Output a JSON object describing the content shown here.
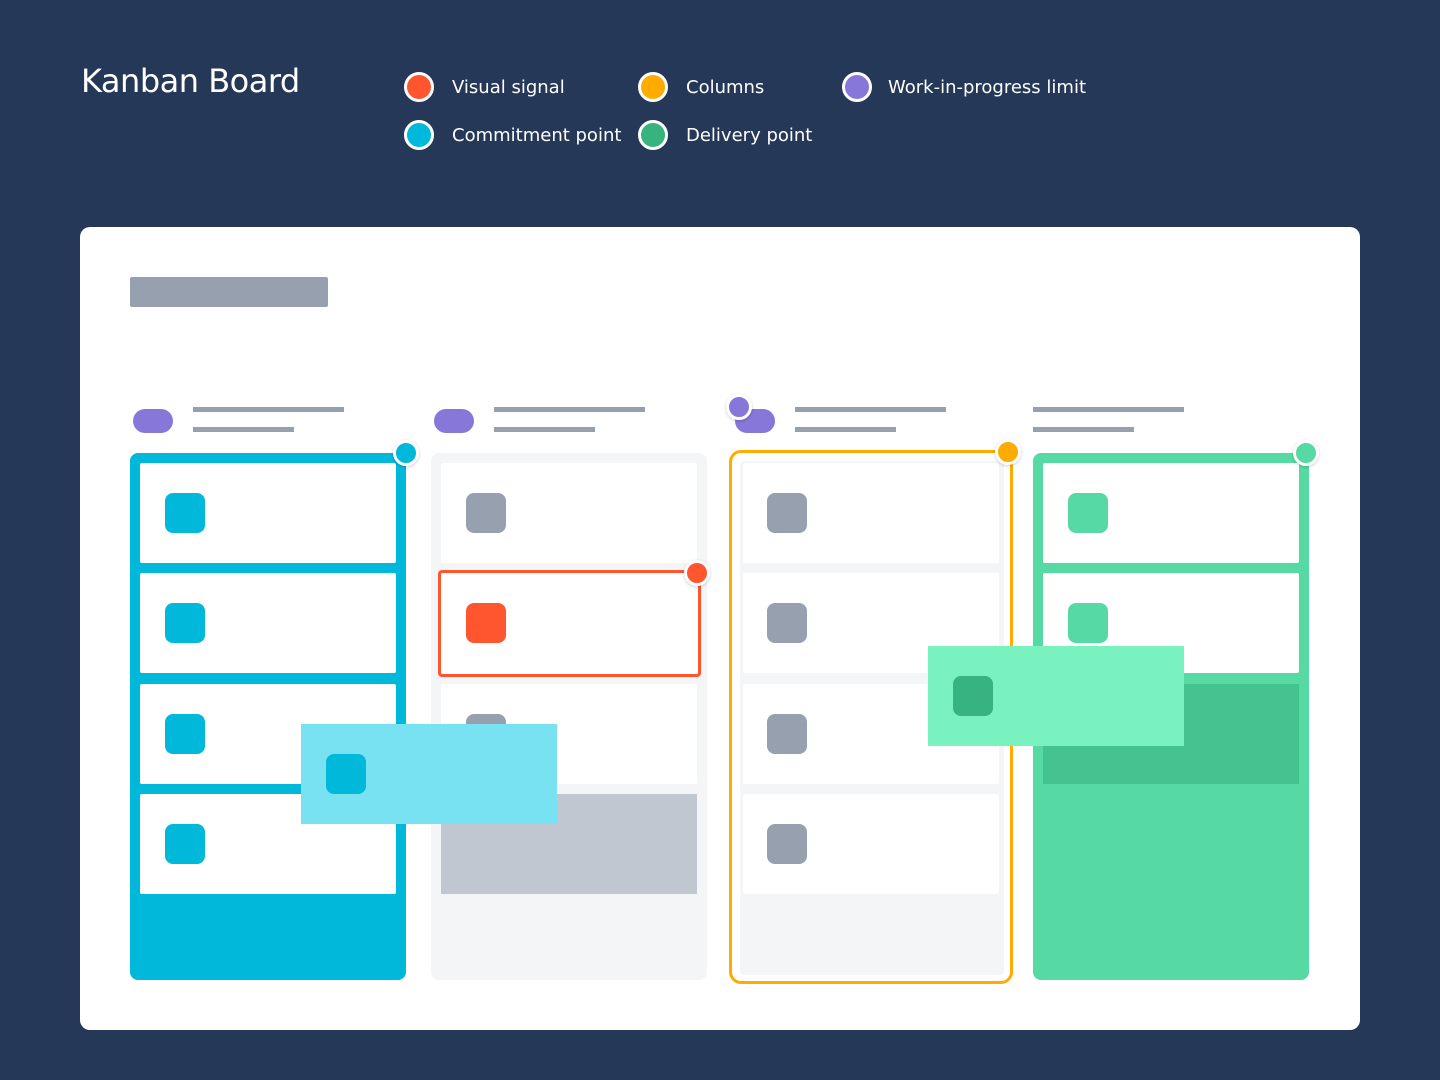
{
  "title": "Kanban Board",
  "legend": [
    {
      "label": "Visual signal",
      "color": "#FF5630"
    },
    {
      "label": "Columns",
      "color": "#FFAB00"
    },
    {
      "label": "Work-in-progress limit",
      "color": "#8777D9"
    },
    {
      "label": "Commitment point",
      "color": "#00B8D9"
    },
    {
      "label": "Delivery point",
      "color": "#36B37E"
    }
  ]
}
